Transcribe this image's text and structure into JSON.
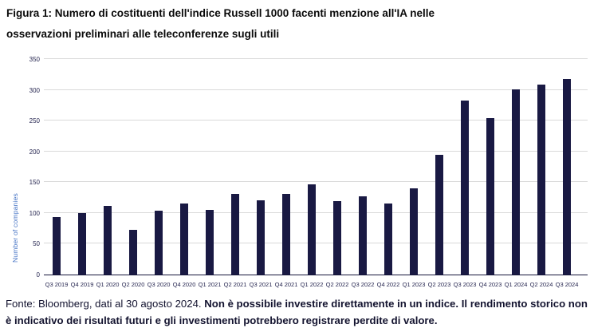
{
  "figure": {
    "title_line1": "Figura 1: Numero di costituenti dell'indice Russell 1000 facenti menzione all'IA nelle",
    "title_line2": "osservazioni preliminari alle teleconferenze sugli utili"
  },
  "chart_data": {
    "type": "bar",
    "title": "Figura 1: Numero di costituenti dell'indice Russell 1000 facenti menzione all'IA nelle osservazioni preliminari alle teleconferenze sugli utili",
    "xlabel": "",
    "ylabel": "Number of companies",
    "ylim": [
      0,
      350
    ],
    "ytick_step": 50,
    "grid": true,
    "legend": "none",
    "categories": [
      "Q3 2019",
      "Q4 2019",
      "Q1 2020",
      "Q2 2020",
      "Q3 2020",
      "Q4 2020",
      "Q1 2021",
      "Q2 2021",
      "Q3 2021",
      "Q4 2021",
      "Q1 2022",
      "Q2 2022",
      "Q3 2022",
      "Q4 2022",
      "Q1 2023",
      "Q2 2023",
      "Q3 2023",
      "Q4 2023",
      "Q1 2024",
      "Q2 2024",
      "Q3 2024"
    ],
    "values": [
      94,
      100,
      112,
      72,
      104,
      115,
      105,
      131,
      121,
      131,
      146,
      119,
      127,
      115,
      140,
      195,
      283,
      254,
      301,
      308,
      318
    ]
  },
  "footer": {
    "source": "Fonte: Bloomberg, dati al 30 agosto 2024. ",
    "disclaimer": "Non è possibile investire direttamente in un indice. Il rendimento storico non è indicativo dei risultati futuri e gli investimenti potrebbero registrare perdite di valore."
  },
  "colors": {
    "bar": "#191943",
    "gridline": "#d9d9d9",
    "axis": "#15153a",
    "y_axis_title": "#4472c4",
    "tick_labels": "#262650",
    "title_text": "#0a0a0a",
    "footer_text": "#13132f"
  }
}
